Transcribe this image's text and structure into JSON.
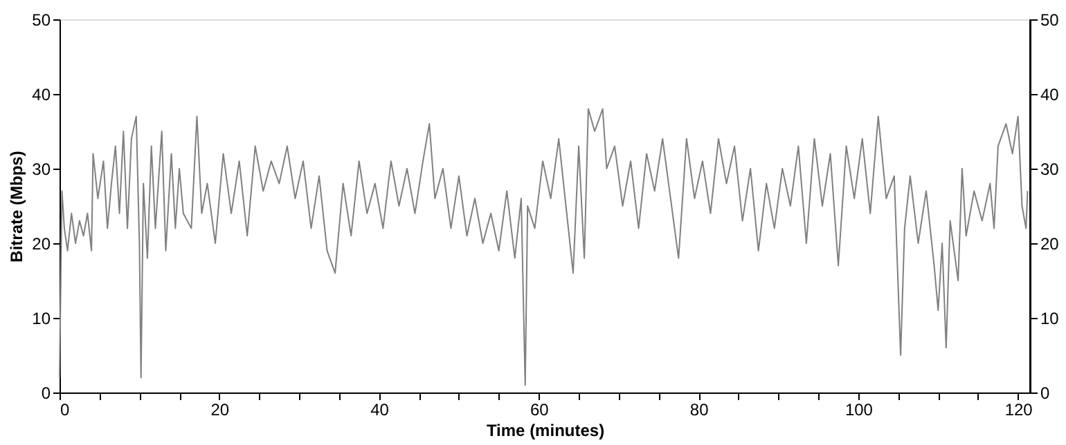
{
  "chart_data": {
    "type": "line",
    "xlabel": "Time (minutes)",
    "ylabel": "Bitrate (Mbps)",
    "xlim": [
      0,
      121.5
    ],
    "ylim": [
      0,
      50
    ],
    "y2lim": [
      0,
      50
    ],
    "xticks": [
      0,
      {
        "value": 5,
        "label": null
      },
      {
        "value": 10,
        "label": null
      },
      {
        "value": 15,
        "label": null
      },
      20,
      {
        "value": 25,
        "label": null
      },
      {
        "value": 30,
        "label": null
      },
      {
        "value": 35,
        "label": null
      },
      40,
      {
        "value": 45,
        "label": null
      },
      {
        "value": 50,
        "label": null
      },
      {
        "value": 55,
        "label": null
      },
      60,
      {
        "value": 65,
        "label": null
      },
      {
        "value": 70,
        "label": null
      },
      {
        "value": 75,
        "label": null
      },
      80,
      {
        "value": 85,
        "label": null
      },
      {
        "value": 90,
        "label": null
      },
      {
        "value": 95,
        "label": null
      },
      100,
      {
        "value": 105,
        "label": null
      },
      {
        "value": 110,
        "label": null
      },
      {
        "value": 115,
        "label": null
      },
      120
    ],
    "yticks": [
      0,
      10,
      20,
      30,
      40,
      50
    ],
    "y2ticks": [
      0,
      10,
      20,
      30,
      40,
      50
    ],
    "grid": false,
    "marker": "none",
    "line_style": "solid",
    "series": [
      {
        "color": "#808080",
        "x": [
          0.0,
          0.3,
          0.6,
          1.0,
          1.5,
          2.0,
          2.5,
          3.0,
          3.5,
          4.0,
          4.2,
          4.8,
          5.5,
          6.0,
          6.5,
          7.0,
          7.5,
          8.0,
          8.5,
          9.0,
          9.6,
          10.0,
          10.2,
          10.5,
          11.0,
          11.5,
          12.0,
          12.8,
          13.3,
          14.0,
          14.5,
          15.0,
          15.5,
          16.5,
          17.2,
          17.8,
          18.5,
          19.5,
          20.5,
          21.5,
          22.5,
          23.5,
          24.5,
          25.5,
          26.5,
          27.5,
          28.5,
          29.5,
          30.5,
          31.5,
          32.5,
          33.5,
          34.5,
          35.5,
          36.5,
          37.5,
          38.5,
          39.5,
          40.5,
          41.5,
          42.5,
          43.5,
          44.5,
          45.5,
          46.3,
          47.0,
          48.0,
          49.0,
          50.0,
          51.0,
          52.0,
          53.0,
          54.0,
          55.0,
          56.0,
          57.0,
          57.8,
          58.3,
          58.6,
          59.5,
          60.5,
          61.5,
          62.5,
          63.5,
          64.3,
          65.0,
          65.7,
          66.2,
          67.0,
          68.0,
          68.5,
          69.5,
          70.5,
          71.5,
          72.5,
          73.5,
          74.5,
          75.5,
          76.5,
          77.5,
          78.5,
          79.5,
          80.5,
          81.5,
          82.5,
          83.5,
          84.5,
          85.5,
          86.5,
          87.5,
          88.5,
          89.5,
          90.5,
          91.5,
          92.5,
          93.5,
          94.5,
          95.5,
          96.5,
          97.5,
          98.5,
          99.5,
          100.5,
          101.5,
          102.5,
          103.5,
          104.5,
          105.3,
          105.8,
          106.5,
          107.5,
          108.5,
          109.5,
          110.0,
          110.5,
          111.0,
          111.5,
          112.5,
          113.0,
          113.5,
          114.5,
          115.5,
          116.5,
          117.0,
          117.5,
          118.5,
          119.3,
          120.0,
          120.5,
          121.0,
          121.2
        ],
        "values": [
          2,
          27,
          22,
          19,
          24,
          20,
          23,
          21,
          24,
          19,
          32,
          26,
          31,
          22,
          28,
          33,
          24,
          35,
          22,
          34,
          37,
          20,
          2,
          28,
          18,
          33,
          22,
          35,
          19,
          32,
          22,
          30,
          24,
          22,
          37,
          24,
          28,
          20,
          32,
          24,
          31,
          21,
          33,
          27,
          31,
          28,
          33,
          26,
          31,
          22,
          29,
          19,
          16,
          28,
          21,
          31,
          24,
          28,
          22,
          31,
          25,
          30,
          24,
          31,
          36,
          26,
          30,
          22,
          29,
          21,
          26,
          20,
          24,
          19,
          27,
          18,
          26,
          1,
          25,
          22,
          31,
          26,
          34,
          24,
          16,
          33,
          18,
          38,
          35,
          38,
          30,
          33,
          25,
          31,
          22,
          32,
          27,
          34,
          26,
          18,
          34,
          26,
          31,
          24,
          34,
          28,
          33,
          23,
          30,
          19,
          28,
          22,
          30,
          25,
          33,
          20,
          34,
          25,
          32,
          17,
          33,
          26,
          34,
          24,
          37,
          26,
          29,
          5,
          22,
          29,
          20,
          27,
          17,
          11,
          20,
          6,
          23,
          15,
          30,
          21,
          27,
          23,
          28,
          22,
          33,
          36,
          32,
          37,
          25,
          22,
          27
        ]
      }
    ]
  }
}
